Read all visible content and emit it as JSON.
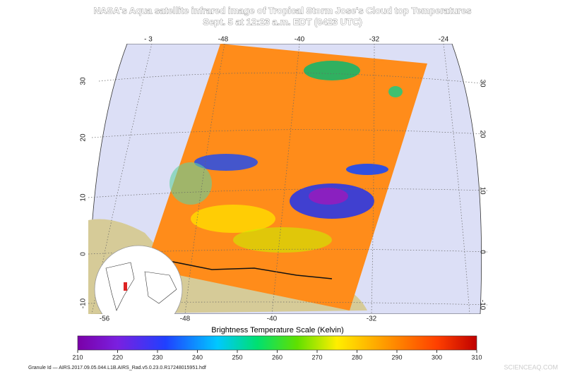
{
  "header": {
    "title": "NASA's Aqua satellite infrared image of Tropical Storm Jose's Cloud top Temperatures",
    "subtitle": "Sept. 5 at 12:23 a.m. EDT (0423 UTC)"
  },
  "map": {
    "lon_top": [
      "- 3",
      "-48",
      "-40",
      "-32",
      "-24"
    ],
    "lon_bottom": [
      "-56",
      "-48",
      "-40",
      "-32"
    ],
    "lat_left": [
      "30",
      "20",
      "10",
      "0",
      "-10"
    ],
    "lat_right": [
      "30",
      "20",
      "10",
      "0",
      "-10"
    ]
  },
  "colorbar": {
    "title": "Brightness Temperature Scale (Kelvin)",
    "range": [
      210,
      310
    ],
    "ticks": [
      210,
      220,
      230,
      240,
      250,
      260,
      270,
      280,
      290,
      300,
      310
    ]
  },
  "footer": {
    "granule": "Granule Id — AIRS.2017.09.05.044.L1B.AIRS_Rad.v5.0.23.0.R17248015951.hdf",
    "watermark": "SCIENCEAQ.COM"
  }
}
